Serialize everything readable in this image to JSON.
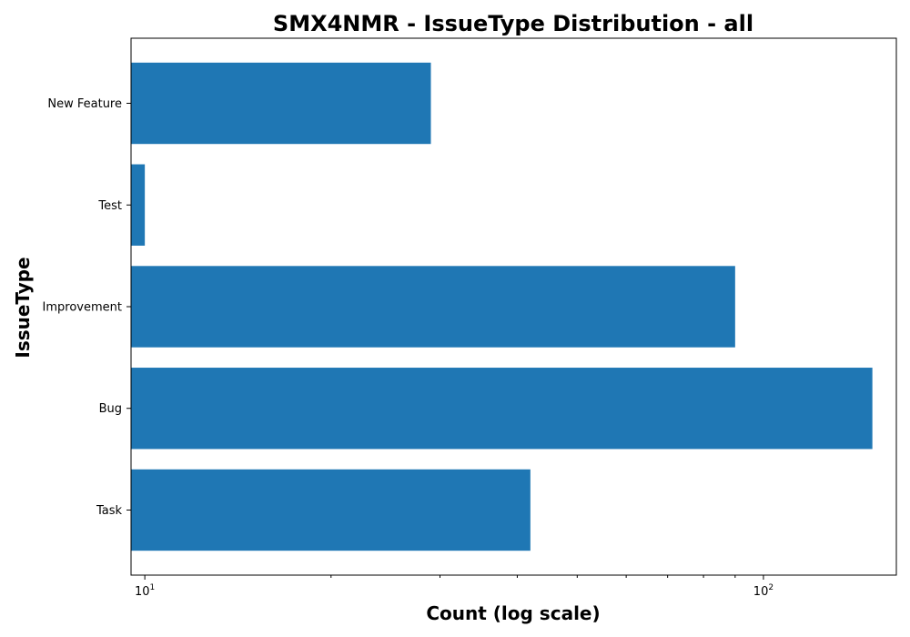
{
  "chart_data": {
    "type": "bar",
    "orientation": "horizontal",
    "title": "SMX4NMR - IssueType Distribution - all",
    "xlabel": "Count (log scale)",
    "ylabel": "IssueType",
    "x_scale": "log",
    "xlim": [
      9.5,
      164
    ],
    "x_ticks": [
      {
        "value": 10,
        "base": "10",
        "exp": "1"
      },
      {
        "value": 100,
        "base": "10",
        "exp": "2"
      }
    ],
    "categories": [
      "Task",
      "Bug",
      "Improvement",
      "Test",
      "New Feature"
    ],
    "values": [
      42,
      150,
      90,
      10,
      29
    ],
    "colors": {
      "bar": "#1f77b4"
    },
    "grid": false,
    "legend": "none"
  }
}
